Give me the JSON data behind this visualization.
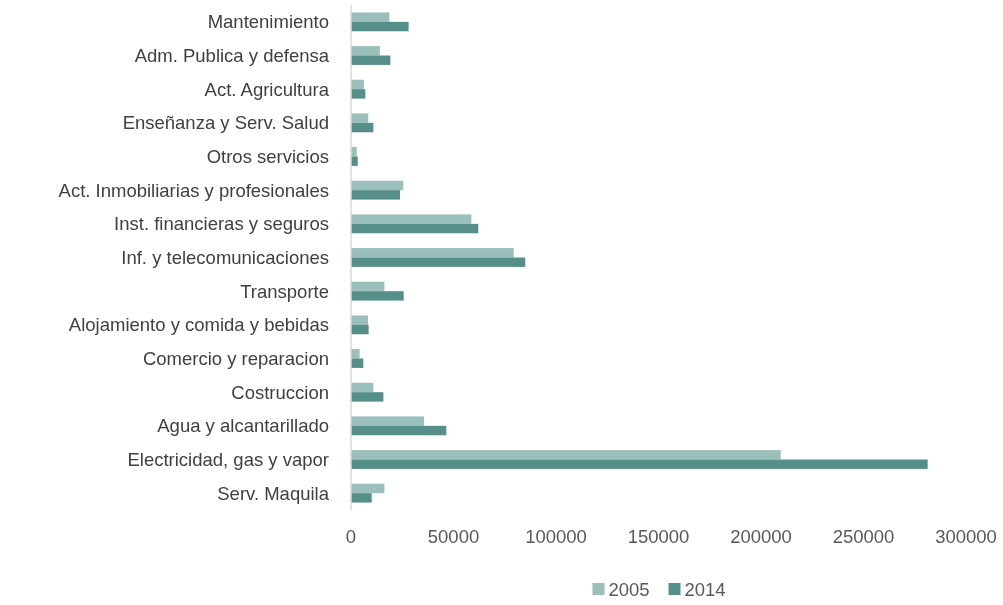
{
  "chart_data": {
    "type": "bar",
    "orientation": "horizontal",
    "categories": [
      "Mantenimiento",
      "Adm. Publica y defensa",
      "Act. Agricultura",
      "Enseñanza y Serv. Salud",
      "Otros servicios",
      "Act. Inmobiliarias y profesionales",
      "Inst. financieras y seguros",
      "Inf. y telecomunicaciones",
      "Transporte",
      "Alojamiento y  comida y bebidas",
      "Comercio y reparacion",
      "Costruccion",
      "Agua y alcantarillado",
      "Electricidad, gas y vapor",
      "Serv. Maquila"
    ],
    "series": [
      {
        "name": "2005",
        "color": "#9bbfbb",
        "values": [
          18700,
          14100,
          6300,
          8400,
          2800,
          25500,
          58700,
          79400,
          16300,
          8300,
          4200,
          10900,
          35600,
          209600,
          16300
        ]
      },
      {
        "name": "2014",
        "color": "#568f8a",
        "values": [
          28100,
          19200,
          7000,
          10900,
          3300,
          23900,
          62100,
          85000,
          25700,
          8600,
          6000,
          15800,
          46500,
          281300,
          10100
        ]
      }
    ],
    "xlim": [
      0,
      300000
    ],
    "xticks": [
      0,
      50000,
      100000,
      150000,
      200000,
      250000,
      300000
    ],
    "grid": false,
    "legend": "bottom"
  }
}
